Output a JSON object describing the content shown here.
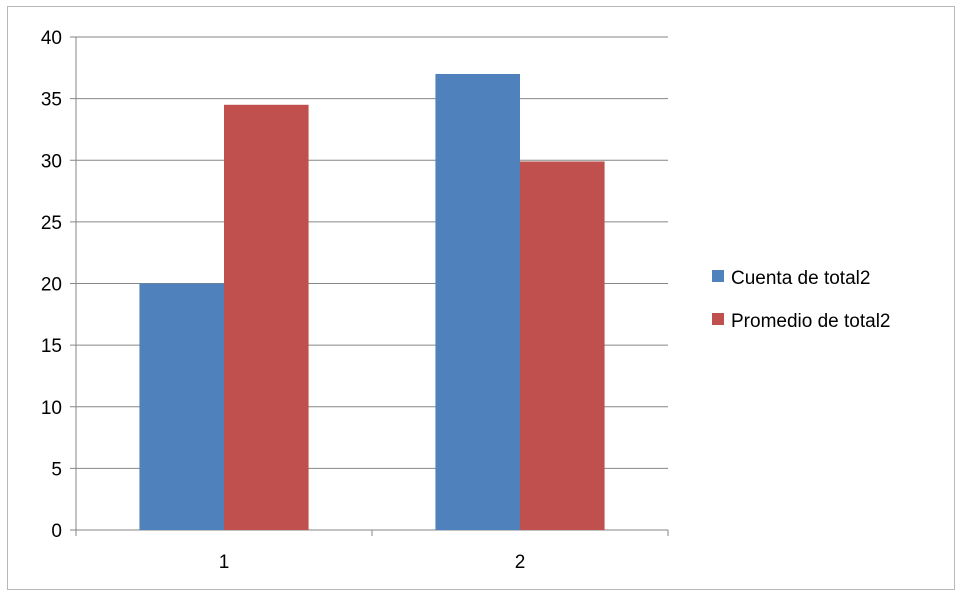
{
  "chart_data": {
    "type": "bar",
    "title": "",
    "xlabel": "",
    "ylabel": "",
    "categories": [
      "1",
      "2"
    ],
    "ylim": [
      0,
      40
    ],
    "ytick_step": 5,
    "yticks": [
      "0",
      "5",
      "10",
      "15",
      "20",
      "25",
      "30",
      "35",
      "40"
    ],
    "grid": true,
    "legend_position": "right",
    "series": [
      {
        "name": "Cuenta de total2",
        "color": "#4F81BD",
        "values": [
          20,
          37
        ]
      },
      {
        "name": "Promedio de total2",
        "color": "#C0504D",
        "values": [
          34.5,
          29.9
        ]
      }
    ]
  }
}
